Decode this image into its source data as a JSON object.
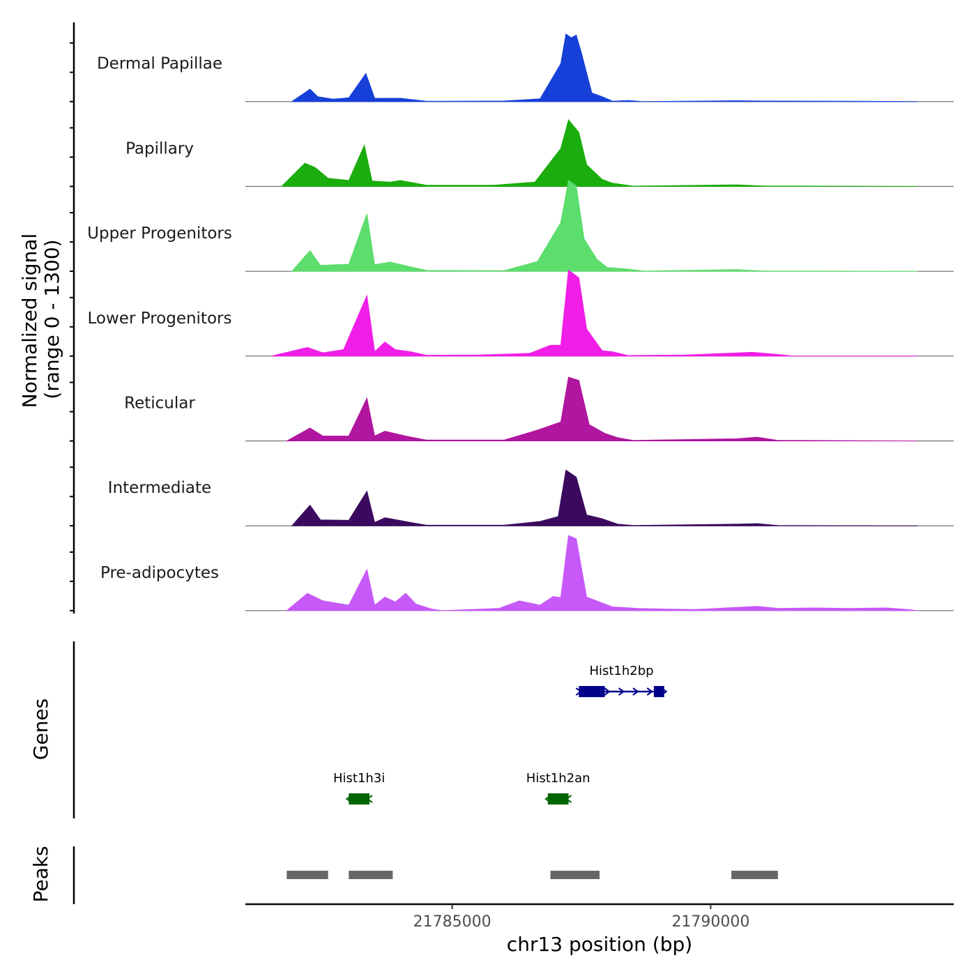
{
  "chart_data": {
    "type": "area",
    "title": "",
    "ylabel_line1": "Normalized signal",
    "ylabel_line2": "(range 0 - 1300)",
    "ylim": [
      0,
      1300
    ],
    "xlabel": "chr13 position (bp)",
    "xlim": [
      21781000,
      21794700
    ],
    "xticks": [
      {
        "value": 21785000,
        "label": "21785000"
      },
      {
        "value": 21790000,
        "label": "21790000"
      }
    ],
    "genes_label": "Genes",
    "peaks_label": "Peaks",
    "series": [
      {
        "name": "Dermal Papillae",
        "color": "#1640d8",
        "points": [
          [
            21781900,
            0
          ],
          [
            21782250,
            230
          ],
          [
            21782400,
            90
          ],
          [
            21782700,
            45
          ],
          [
            21783000,
            70
          ],
          [
            21783330,
            520
          ],
          [
            21783500,
            60
          ],
          [
            21784000,
            60
          ],
          [
            21784500,
            5
          ],
          [
            21786000,
            10
          ],
          [
            21786700,
            50
          ],
          [
            21787100,
            700
          ],
          [
            21787200,
            1250
          ],
          [
            21787300,
            1180
          ],
          [
            21787400,
            1230
          ],
          [
            21787500,
            900
          ],
          [
            21787700,
            160
          ],
          [
            21787900,
            90
          ],
          [
            21788100,
            8
          ],
          [
            21788400,
            20
          ],
          [
            21788700,
            0
          ],
          [
            21790500,
            15
          ],
          [
            21791000,
            10
          ],
          [
            21792800,
            5
          ],
          [
            21794000,
            0
          ]
        ]
      },
      {
        "name": "Papillary",
        "color": "#1aad0d",
        "points": [
          [
            21781700,
            0
          ],
          [
            21782150,
            430
          ],
          [
            21782350,
            350
          ],
          [
            21782600,
            150
          ],
          [
            21783000,
            110
          ],
          [
            21783300,
            760
          ],
          [
            21783450,
            100
          ],
          [
            21783800,
            80
          ],
          [
            21784000,
            110
          ],
          [
            21784500,
            20
          ],
          [
            21785800,
            20
          ],
          [
            21786600,
            80
          ],
          [
            21787100,
            700
          ],
          [
            21787250,
            1230
          ],
          [
            21787450,
            1000
          ],
          [
            21787600,
            400
          ],
          [
            21787900,
            130
          ],
          [
            21788100,
            60
          ],
          [
            21788500,
            5
          ],
          [
            21790500,
            30
          ],
          [
            21791000,
            8
          ],
          [
            21794000,
            0
          ]
        ]
      },
      {
        "name": "Upper Progenitors",
        "color": "#5ddd6c",
        "points": [
          [
            21781900,
            0
          ],
          [
            21782250,
            380
          ],
          [
            21782450,
            110
          ],
          [
            21783000,
            130
          ],
          [
            21783350,
            1060
          ],
          [
            21783500,
            120
          ],
          [
            21783800,
            170
          ],
          [
            21784200,
            80
          ],
          [
            21784500,
            15
          ],
          [
            21786000,
            10
          ],
          [
            21786650,
            180
          ],
          [
            21787100,
            900
          ],
          [
            21787250,
            1680
          ],
          [
            21787400,
            1580
          ],
          [
            21787550,
            600
          ],
          [
            21787800,
            220
          ],
          [
            21788000,
            70
          ],
          [
            21788400,
            40
          ],
          [
            21788700,
            5
          ],
          [
            21790500,
            30
          ],
          [
            21791000,
            5
          ],
          [
            21794000,
            0
          ]
        ]
      },
      {
        "name": "Lower Progenitors",
        "color": "#f01ee7",
        "points": [
          [
            21781500,
            0
          ],
          [
            21782200,
            160
          ],
          [
            21782500,
            60
          ],
          [
            21782900,
            120
          ],
          [
            21783350,
            1120
          ],
          [
            21783500,
            80
          ],
          [
            21783700,
            260
          ],
          [
            21783900,
            120
          ],
          [
            21784200,
            80
          ],
          [
            21784500,
            15
          ],
          [
            21785500,
            20
          ],
          [
            21786500,
            50
          ],
          [
            21786900,
            200
          ],
          [
            21787100,
            200
          ],
          [
            21787250,
            1590
          ],
          [
            21787450,
            1450
          ],
          [
            21787600,
            500
          ],
          [
            21787900,
            100
          ],
          [
            21788100,
            80
          ],
          [
            21788400,
            10
          ],
          [
            21789500,
            20
          ],
          [
            21790800,
            70
          ],
          [
            21791200,
            40
          ],
          [
            21791600,
            0
          ],
          [
            21794000,
            0
          ]
        ]
      },
      {
        "name": "Reticular",
        "color": "#b0169f",
        "points": [
          [
            21781800,
            0
          ],
          [
            21782250,
            240
          ],
          [
            21782500,
            90
          ],
          [
            21783000,
            90
          ],
          [
            21783350,
            790
          ],
          [
            21783500,
            90
          ],
          [
            21783700,
            180
          ],
          [
            21784100,
            90
          ],
          [
            21784500,
            15
          ],
          [
            21786000,
            15
          ],
          [
            21786650,
            200
          ],
          [
            21787100,
            350
          ],
          [
            21787250,
            1180
          ],
          [
            21787450,
            1120
          ],
          [
            21787650,
            300
          ],
          [
            21787950,
            140
          ],
          [
            21788200,
            60
          ],
          [
            21788500,
            10
          ],
          [
            21790500,
            40
          ],
          [
            21790900,
            70
          ],
          [
            21791300,
            10
          ],
          [
            21794000,
            0
          ]
        ]
      },
      {
        "name": "Intermediate",
        "color": "#3b0a5e",
        "points": [
          [
            21781900,
            0
          ],
          [
            21782250,
            380
          ],
          [
            21782450,
            110
          ],
          [
            21783000,
            100
          ],
          [
            21783350,
            640
          ],
          [
            21783500,
            60
          ],
          [
            21783700,
            150
          ],
          [
            21784200,
            60
          ],
          [
            21784500,
            10
          ],
          [
            21786000,
            10
          ],
          [
            21786700,
            80
          ],
          [
            21787050,
            170
          ],
          [
            21787200,
            1030
          ],
          [
            21787400,
            900
          ],
          [
            21787600,
            200
          ],
          [
            21787900,
            130
          ],
          [
            21788200,
            30
          ],
          [
            21788500,
            5
          ],
          [
            21790500,
            30
          ],
          [
            21790900,
            40
          ],
          [
            21791300,
            5
          ],
          [
            21794000,
            0
          ]
        ]
      },
      {
        "name": "Pre-adipocytes",
        "color": "#c659f7",
        "points": [
          [
            21781800,
            0
          ],
          [
            21782200,
            320
          ],
          [
            21782500,
            180
          ],
          [
            21783000,
            100
          ],
          [
            21783350,
            760
          ],
          [
            21783500,
            100
          ],
          [
            21783700,
            250
          ],
          [
            21783900,
            160
          ],
          [
            21784100,
            320
          ],
          [
            21784300,
            120
          ],
          [
            21784600,
            30
          ],
          [
            21784800,
            0
          ],
          [
            21785900,
            40
          ],
          [
            21786300,
            180
          ],
          [
            21786700,
            100
          ],
          [
            21786950,
            260
          ],
          [
            21787100,
            240
          ],
          [
            21787250,
            1390
          ],
          [
            21787400,
            1330
          ],
          [
            21787600,
            250
          ],
          [
            21787900,
            140
          ],
          [
            21788100,
            70
          ],
          [
            21788600,
            40
          ],
          [
            21789100,
            30
          ],
          [
            21789700,
            20
          ],
          [
            21790300,
            50
          ],
          [
            21790900,
            80
          ],
          [
            21791300,
            40
          ],
          [
            21792000,
            50
          ],
          [
            21792700,
            40
          ],
          [
            21793400,
            50
          ],
          [
            21793800,
            20
          ],
          [
            21794000,
            0
          ]
        ]
      }
    ],
    "genes": [
      {
        "name": "Hist1h2bp",
        "color": "#00008b",
        "row": 1,
        "start": 21787450,
        "end": 21789100,
        "strand": "+",
        "exons": [
          [
            21787450,
            21787950
          ],
          [
            21788900,
            21789100
          ]
        ]
      },
      {
        "name": "Hist1h3i",
        "color": "#006400",
        "row": 2,
        "start": 21783000,
        "end": 21783400,
        "strand": "-",
        "exons": [
          [
            21783000,
            21783400
          ]
        ]
      },
      {
        "name": "Hist1h2an",
        "color": "#006400",
        "row": 2,
        "start": 21786850,
        "end": 21787250,
        "strand": "-",
        "exons": [
          [
            21786850,
            21787250
          ]
        ]
      }
    ],
    "peaks": [
      {
        "start": 21781800,
        "end": 21782600
      },
      {
        "start": 21783000,
        "end": 21783850
      },
      {
        "start": 21786900,
        "end": 21787850
      },
      {
        "start": 21790400,
        "end": 21791300
      }
    ],
    "peak_color": "#666666"
  }
}
